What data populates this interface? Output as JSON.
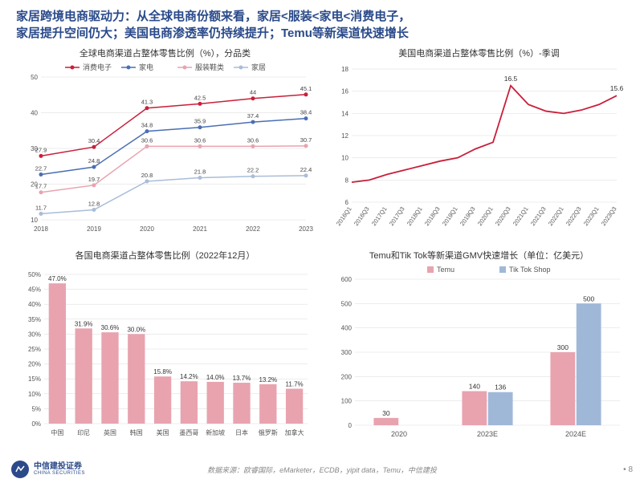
{
  "title_line1": "家居跨境电商驱动力：从全球电商份额来看，家居<服装<家电<消费电子，",
  "title_line2": "家居提升空间仍大；美国电商渗透率仍持续提升；Temu等新渠道快速增长",
  "footer_source": "数据来源：欧睿国际，eMarketer，ECDB，yipit data，Temu，中信建投",
  "footer_page": "8",
  "logo_name": "中信建投证券",
  "logo_sub": "CHINA SECURITIES",
  "chart1": {
    "type": "line",
    "title": "全球电商渠道占整体零售比例（%），分品类",
    "categories": [
      "2018",
      "2019",
      "2020",
      "2021",
      "2022",
      "2023"
    ],
    "series": [
      {
        "name": "消费电子",
        "color": "#c91f3a",
        "values": [
          27.9,
          30.4,
          41.3,
          42.5,
          44.0,
          45.1
        ]
      },
      {
        "name": "家电",
        "color": "#4a6fb3",
        "values": [
          22.7,
          24.8,
          34.8,
          35.9,
          37.4,
          38.4
        ]
      },
      {
        "name": "服装鞋类",
        "color": "#e8a3af",
        "values": [
          17.7,
          19.7,
          30.6,
          30.6,
          30.6,
          30.7
        ]
      },
      {
        "name": "家居",
        "color": "#a9bdd8",
        "values": [
          11.7,
          12.8,
          20.8,
          21.8,
          22.2,
          22.4
        ]
      }
    ],
    "ylim": [
      10,
      50
    ],
    "ytick_step": 10,
    "grid_color": "#d9d9d9",
    "background": "#ffffff",
    "label_fontsize": 8,
    "marker_size": 2.5
  },
  "chart2": {
    "type": "line",
    "title": "美国电商渠道占整体零售比例（%）-季调",
    "categories": [
      "2016Q1",
      "2016Q3",
      "2017Q1",
      "2017Q3",
      "2018Q1",
      "2018Q3",
      "2019Q1",
      "2019Q3",
      "2020Q1",
      "2020Q3",
      "2021Q1",
      "2021Q3",
      "2022Q1",
      "2022Q3",
      "2023Q1",
      "2023Q3"
    ],
    "series": [
      {
        "name": "US",
        "color": "#c91f3a",
        "values": [
          7.8,
          8.0,
          8.5,
          8.9,
          9.3,
          9.7,
          10.0,
          10.8,
          11.4,
          16.5,
          14.8,
          14.2,
          14.0,
          14.3,
          14.8,
          15.6
        ],
        "labels": {
          "0": "",
          "9": "16.5",
          "15": "15.6"
        }
      }
    ],
    "ylim": [
      6,
      18
    ],
    "ytick_step": 2,
    "grid_color": "#d9d9d9",
    "background": "#ffffff",
    "label_fontsize": 8
  },
  "chart3": {
    "type": "bar",
    "title": "各国电商渠道占整体零售比例（2022年12月）",
    "categories": [
      "中国",
      "印尼",
      "英国",
      "韩国",
      "美国",
      "墨西哥",
      "新加坡",
      "日本",
      "俄罗斯",
      "加拿大"
    ],
    "values": [
      47.0,
      31.9,
      30.6,
      30.0,
      15.8,
      14.2,
      14.0,
      13.7,
      13.2,
      11.7
    ],
    "bar_color": "#e8a3af",
    "ylim": [
      0,
      50
    ],
    "ytick_step": 5,
    "grid_color": "#d9d9d9",
    "background": "#ffffff",
    "label_fontsize": 8,
    "value_suffix": "%"
  },
  "chart4": {
    "type": "grouped-bar",
    "title": "Temu和Tik Tok等新渠道GMV快速增长（单位：亿美元）",
    "categories": [
      "2020",
      "2023E",
      "2024E"
    ],
    "series": [
      {
        "name": "Temu",
        "color": "#e8a3af",
        "values": [
          30,
          140,
          300
        ]
      },
      {
        "name": "Tik Tok Shop",
        "color": "#a0b8d8",
        "values": [
          null,
          136,
          500
        ]
      }
    ],
    "ylim": [
      0,
      600
    ],
    "ytick_step": 100,
    "grid_color": "#d9d9d9",
    "background": "#ffffff",
    "label_fontsize": 8
  }
}
